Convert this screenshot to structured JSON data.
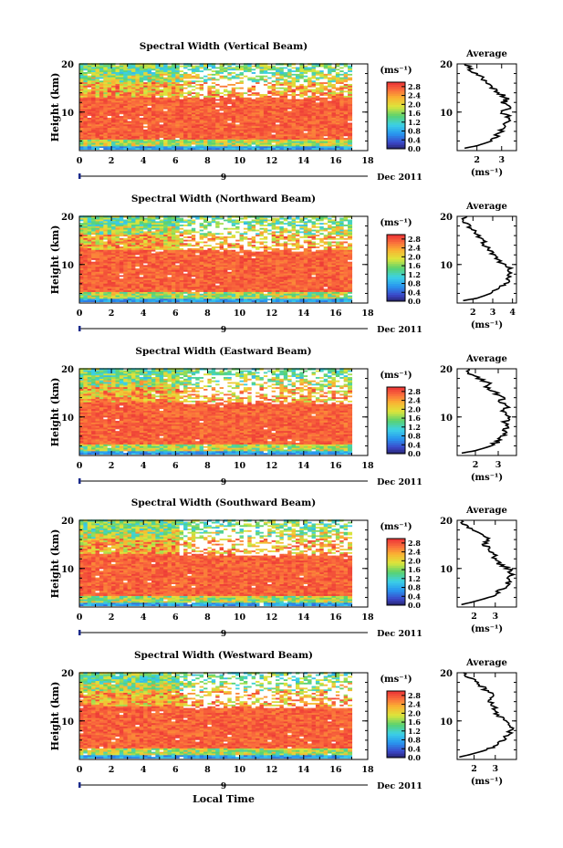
{
  "figure": {
    "xlabel": "Local Time",
    "colors": {
      "axis": "#000000",
      "background": "#ffffff",
      "date_marker": "#1a2a8a",
      "no_data": "#ffffff"
    }
  },
  "chart_data": [
    {
      "type": "heatmap",
      "title": "Spectral Width (Vertical Beam)",
      "ylabel": "Height (km)",
      "xlim": [
        0,
        18
      ],
      "ylim": [
        2,
        20
      ],
      "x_ticks": [
        "0",
        "2",
        "4",
        "6",
        "8",
        "10",
        "12",
        "14",
        "16",
        "18"
      ],
      "y_ticks": [
        "10",
        "20"
      ],
      "date_label": "Dec 2011",
      "date_day": "9",
      "colorbar": {
        "unit": "(ms⁻¹)",
        "range": [
          0,
          3.0
        ],
        "ticks": [
          "2.8",
          "2.4",
          "2.0",
          "1.6",
          "1.2",
          "0.8",
          "0.4",
          "0.0"
        ]
      },
      "average": {
        "title": "Average",
        "xlabel": "(ms⁻¹)",
        "x_ticks": [
          "2",
          "3"
        ],
        "xlim": [
          1.2,
          3.6
        ],
        "height_km": [
          2.5,
          3,
          4,
          5,
          6,
          7,
          8,
          9,
          10,
          11,
          12,
          13,
          14,
          15,
          16,
          17,
          18,
          19,
          20
        ],
        "value": [
          1.5,
          2.0,
          2.6,
          2.8,
          3.0,
          3.1,
          3.2,
          3.3,
          3.0,
          3.3,
          3.1,
          3.2,
          2.9,
          2.6,
          2.4,
          2.2,
          2.0,
          1.7,
          1.5
        ]
      }
    },
    {
      "type": "heatmap",
      "title": "Spectral Width (Northward Beam)",
      "ylabel": "Height (km)",
      "xlim": [
        0,
        18
      ],
      "ylim": [
        2,
        20
      ],
      "x_ticks": [
        "0",
        "2",
        "4",
        "6",
        "8",
        "10",
        "12",
        "14",
        "16",
        "18"
      ],
      "y_ticks": [
        "10",
        "20"
      ],
      "date_label": "Dec 2011",
      "date_day": "9",
      "colorbar": {
        "unit": "(ms⁻¹)",
        "range": [
          0,
          3.0
        ],
        "ticks": [
          "2.8",
          "2.4",
          "2.0",
          "1.6",
          "1.2",
          "0.8",
          "0.4",
          "0.0"
        ]
      },
      "average": {
        "title": "Average",
        "xlabel": "(ms⁻¹)",
        "x_ticks": [
          "2",
          "3",
          "4"
        ],
        "xlim": [
          1.2,
          4.2
        ],
        "height_km": [
          2.5,
          3,
          4,
          5,
          6,
          7,
          8,
          9,
          10,
          11,
          12,
          13,
          14,
          15,
          16,
          17,
          18,
          19,
          20
        ],
        "value": [
          1.5,
          2.2,
          2.9,
          3.3,
          3.6,
          3.8,
          3.9,
          3.9,
          3.6,
          3.2,
          3.0,
          2.8,
          2.6,
          2.5,
          2.3,
          2.1,
          1.8,
          1.5,
          1.7
        ]
      }
    },
    {
      "type": "heatmap",
      "title": "Spectral Width (Eastward Beam)",
      "ylabel": "Height (km)",
      "xlim": [
        0,
        18
      ],
      "ylim": [
        2,
        20
      ],
      "x_ticks": [
        "0",
        "2",
        "4",
        "6",
        "8",
        "10",
        "12",
        "14",
        "16",
        "18"
      ],
      "y_ticks": [
        "10",
        "20"
      ],
      "date_label": "Dec 2011",
      "date_day": "9",
      "colorbar": {
        "unit": "(ms⁻¹)",
        "range": [
          0,
          3.0
        ],
        "ticks": [
          "2.8",
          "2.4",
          "2.0",
          "1.6",
          "1.2",
          "0.8",
          "0.4",
          "0.0"
        ]
      },
      "average": {
        "title": "Average",
        "xlabel": "(ms⁻¹)",
        "x_ticks": [
          "2",
          "3"
        ],
        "xlim": [
          1.2,
          3.8
        ],
        "height_km": [
          2.5,
          3,
          4,
          5,
          6,
          7,
          8,
          9,
          10,
          11,
          12,
          13,
          14,
          15,
          16,
          17,
          18,
          19,
          20
        ],
        "value": [
          1.4,
          2.0,
          2.7,
          3.0,
          3.2,
          3.3,
          3.4,
          3.3,
          3.4,
          3.2,
          3.4,
          3.1,
          3.2,
          2.9,
          2.5,
          2.6,
          2.2,
          1.8,
          1.7
        ]
      }
    },
    {
      "type": "heatmap",
      "title": "Spectral Width (Southward Beam)",
      "ylabel": "Height (km)",
      "xlim": [
        0,
        18
      ],
      "ylim": [
        2,
        20
      ],
      "x_ticks": [
        "0",
        "2",
        "4",
        "6",
        "8",
        "10",
        "12",
        "14",
        "16",
        "18"
      ],
      "y_ticks": [
        "10",
        "20"
      ],
      "date_label": "Dec 2011",
      "date_day": "9",
      "colorbar": {
        "unit": "(ms⁻¹)",
        "range": [
          0,
          3.0
        ],
        "ticks": [
          "2.8",
          "2.4",
          "2.0",
          "1.6",
          "1.2",
          "0.8",
          "0.4",
          "0.0"
        ]
      },
      "average": {
        "title": "Average",
        "xlabel": "(ms⁻¹)",
        "x_ticks": [
          "2",
          "3"
        ],
        "xlim": [
          1.2,
          4.0
        ],
        "height_km": [
          2.5,
          3,
          4,
          5,
          6,
          7,
          8,
          9,
          10,
          11,
          12,
          13,
          14,
          15,
          16,
          17,
          18,
          19,
          20
        ],
        "value": [
          1.4,
          1.9,
          2.7,
          3.1,
          3.4,
          3.6,
          3.7,
          3.8,
          3.6,
          3.2,
          3.0,
          2.9,
          2.7,
          2.5,
          2.7,
          2.3,
          2.0,
          1.6,
          1.4
        ]
      }
    },
    {
      "type": "heatmap",
      "title": "Spectral Width (Westward Beam)",
      "ylabel": "Height (km)",
      "xlim": [
        0,
        18
      ],
      "ylim": [
        2,
        20
      ],
      "x_ticks": [
        "0",
        "2",
        "4",
        "6",
        "8",
        "10",
        "12",
        "14",
        "16",
        "18"
      ],
      "y_ticks": [
        "10",
        "20"
      ],
      "date_label": "Dec 2011",
      "date_day": "9",
      "colorbar": {
        "unit": "(ms⁻¹)",
        "range": [
          0,
          3.0
        ],
        "ticks": [
          "2.8",
          "2.4",
          "2.0",
          "1.6",
          "1.2",
          "0.8",
          "0.4",
          "0.0"
        ]
      },
      "average": {
        "title": "Average",
        "xlabel": "(ms⁻¹)",
        "x_ticks": [
          "2",
          "3"
        ],
        "xlim": [
          1.2,
          4.0
        ],
        "height_km": [
          2.5,
          3,
          4,
          5,
          6,
          7,
          8,
          9,
          10,
          11,
          12,
          13,
          14,
          15,
          16,
          17,
          18,
          19,
          20
        ],
        "value": [
          1.3,
          1.8,
          2.6,
          3.1,
          3.4,
          3.6,
          3.7,
          3.8,
          3.6,
          3.2,
          3.0,
          2.9,
          2.8,
          2.9,
          2.7,
          2.4,
          2.2,
          1.8,
          1.5
        ]
      }
    }
  ]
}
